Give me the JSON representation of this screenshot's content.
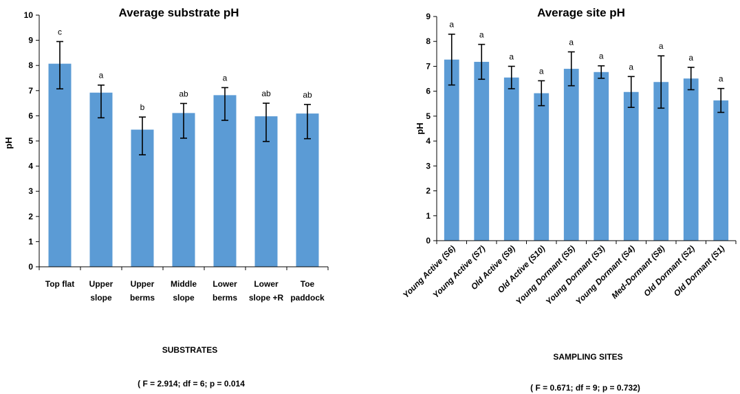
{
  "chart_data": [
    {
      "type": "bar",
      "title": "Average substrate pH",
      "ylabel": "pH",
      "xlabel": "SUBSTRATES",
      "note": "( F = 2.914; df = 6; p = 0.014",
      "ylim": [
        0,
        10
      ],
      "yticks": [
        "0",
        "1",
        "2",
        "3",
        "4",
        "5",
        "6",
        "7",
        "8",
        "9",
        "10"
      ],
      "categories": [
        [
          "Top flat"
        ],
        [
          "Upper",
          "slope"
        ],
        [
          "Upper",
          "berms"
        ],
        [
          "Middle",
          "slope"
        ],
        [
          "Lower",
          "berms"
        ],
        [
          "Lower",
          "slope +R"
        ],
        [
          "Toe",
          "paddock"
        ]
      ],
      "values": [
        8.07,
        6.92,
        5.45,
        6.11,
        6.82,
        5.98,
        6.09
      ],
      "error": [
        0.88,
        0.3,
        0.5,
        0.38,
        0.3,
        0.52,
        0.36
      ],
      "error_lower": [
        1.0,
        1.0,
        1.0,
        1.0,
        1.0,
        1.0,
        1.0
      ],
      "letters": [
        "c",
        "a",
        "b",
        "ab",
        "a",
        "ab",
        "ab"
      ],
      "grid": false,
      "bar_color": "#5b9bd5"
    },
    {
      "type": "bar",
      "title": "Average site pH",
      "ylabel": "pH",
      "xlabel": "SAMPLING SITES",
      "note": "( F = 0.671; df = 9; p = 0.732)",
      "ylim": [
        0,
        9
      ],
      "yticks": [
        "0",
        "1",
        "2",
        "3",
        "4",
        "5",
        "6",
        "7",
        "8",
        "9"
      ],
      "categories": [
        "Young Active (S6)",
        "Young Active (S7)",
        "Old Active (S9)",
        "Old Active (S10)",
        "Young Dormant (S5)",
        "Young Dormant (S3)",
        "Young Dormant (S4)",
        "Med-Dormant (S8)",
        "Old Dormant (S2)",
        "Old Dormant (S1)"
      ],
      "values": [
        7.27,
        7.18,
        6.55,
        5.92,
        6.9,
        6.77,
        5.97,
        6.37,
        6.51,
        5.63
      ],
      "error": [
        1.02,
        0.7,
        0.45,
        0.5,
        0.68,
        0.25,
        0.62,
        1.05,
        0.45,
        0.48
      ],
      "letters": [
        "a",
        "a",
        "a",
        "a",
        "a",
        "a",
        "a",
        "a",
        "a",
        "a"
      ],
      "grid": false,
      "bar_color": "#5b9bd5"
    }
  ]
}
